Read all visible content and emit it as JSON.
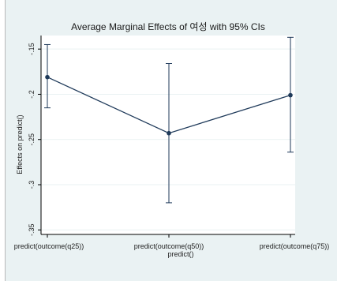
{
  "chart_data": {
    "type": "line",
    "title": "Average Marginal Effects of 여성 with 95% CIs",
    "xlabel": "predict()",
    "ylabel": "Effects on predict()",
    "categories": [
      "predict(outcome(q25))",
      "predict(outcome(q50))",
      "predict(outcome(q75))"
    ],
    "series": [
      {
        "values": [
          -0.181,
          -0.243,
          -0.201
        ],
        "ci_lower": [
          -0.215,
          -0.32,
          -0.264
        ],
        "ci_upper": [
          -0.145,
          -0.166,
          -0.137
        ]
      }
    ],
    "ylim": [
      -0.355,
      -0.135
    ],
    "yticks": [
      -0.15,
      -0.2,
      -0.25,
      -0.3,
      -0.35
    ],
    "ytick_labels": [
      "-.15",
      "-.2",
      "-.25",
      "-.3",
      "-.35"
    ],
    "grid": true,
    "colors": {
      "line": "#1f3a5a",
      "marker": "#1f3a5a",
      "grid": "#eaf2f3",
      "plot_bg": "#ffffff",
      "outer_bg": "#eaf2f3",
      "axis": "#000000"
    }
  }
}
